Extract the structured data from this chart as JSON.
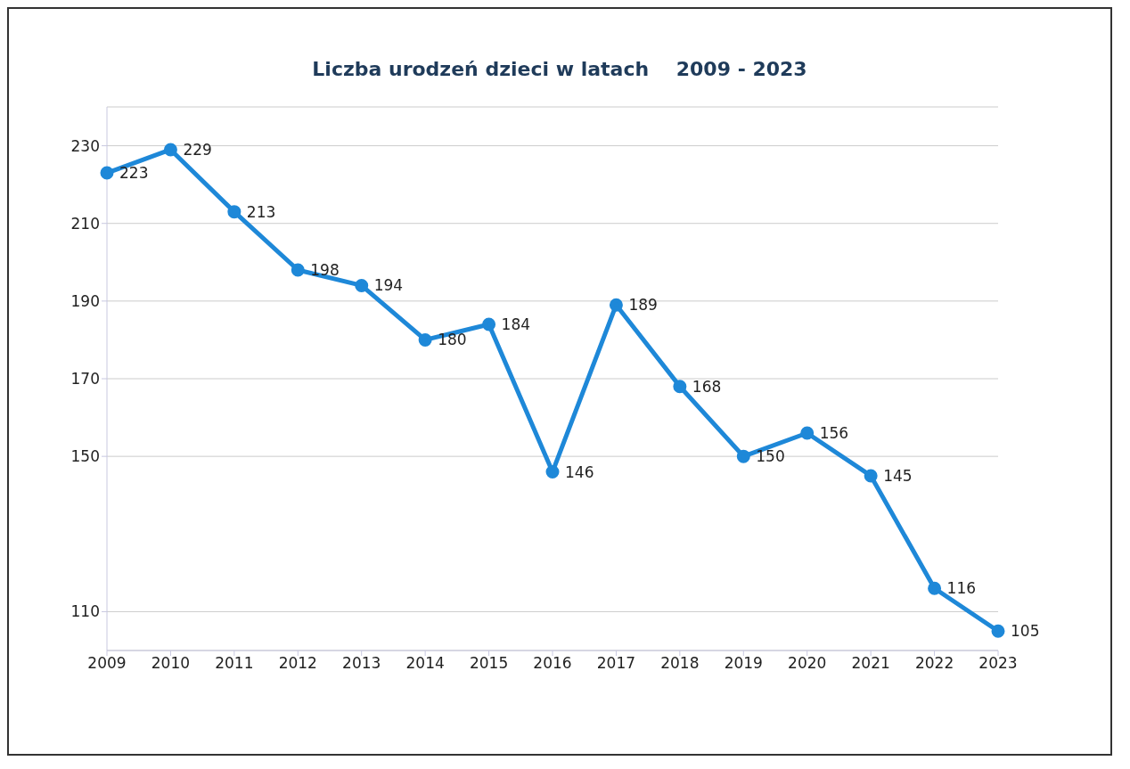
{
  "chart_data": {
    "type": "line",
    "title": "Liczba urodzeń dzieci w latach    2009 - 2023",
    "categories": [
      "2009",
      "2010",
      "2011",
      "2012",
      "2013",
      "2014",
      "2015",
      "2016",
      "2017",
      "2018",
      "2019",
      "2020",
      "2021",
      "2022",
      "2023"
    ],
    "series": [
      {
        "color": "#1e88d8",
        "values": [
          223,
          229,
          213,
          198,
          194,
          180,
          184,
          146,
          189,
          168,
          150,
          156,
          145,
          116,
          105
        ]
      }
    ],
    "ylim": [
      100,
      240
    ],
    "yticks": [
      110,
      150,
      170,
      190,
      210,
      230
    ],
    "grid": "y",
    "marker": "circle",
    "line_style": "solid",
    "data_labels": true
  }
}
